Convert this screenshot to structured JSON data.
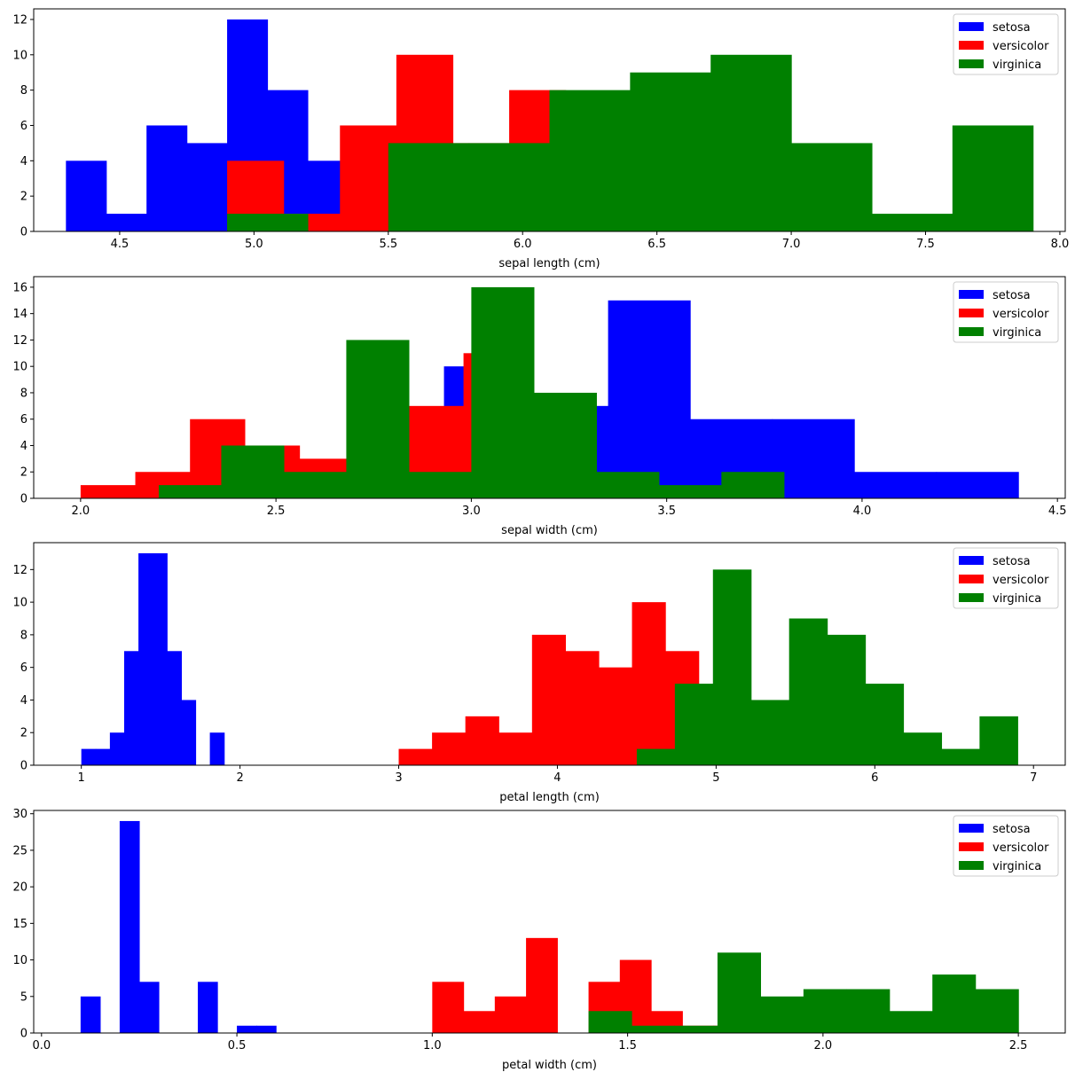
{
  "colors": {
    "setosa": "#0000ff",
    "versicolor": "#ff0000",
    "virginica": "#008000"
  },
  "chart_data": [
    {
      "type": "histogram",
      "xlabel": "sepal length (cm)",
      "xlim": [
        4.18,
        8.02
      ],
      "ylim": [
        0,
        12.6
      ],
      "xticks": [
        "4.5",
        "5.0",
        "5.5",
        "6.0",
        "6.5",
        "7.0",
        "7.5",
        "8.0"
      ],
      "yticks": [
        "0",
        "2",
        "4",
        "6",
        "8",
        "10",
        "12"
      ],
      "legend": [
        "setosa",
        "versicolor",
        "virginica"
      ],
      "series": [
        {
          "name": "setosa",
          "color": "#0000ff",
          "edges": [
            4.3,
            4.45,
            4.6,
            4.75,
            4.9,
            5.05,
            5.2,
            5.35,
            5.5,
            5.65,
            5.8
          ],
          "counts": [
            4,
            1,
            6,
            5,
            12,
            8,
            4,
            1,
            0,
            0
          ]
        },
        {
          "name": "versicolor",
          "color": "#ff0000",
          "edges": [
            4.9,
            5.11,
            5.32,
            5.53,
            5.74,
            5.95,
            6.16,
            6.37,
            6.58,
            6.79,
            7.0
          ],
          "counts": [
            4,
            1,
            6,
            10,
            5,
            8,
            5,
            5,
            4,
            2
          ]
        },
        {
          "name": "virginica",
          "color": "#008000",
          "edges": [
            4.9,
            5.2,
            5.5,
            5.8,
            6.1,
            6.4,
            6.7,
            7.0,
            7.3,
            7.6,
            7.9
          ],
          "counts": [
            1,
            0,
            5,
            5,
            8,
            9,
            10,
            5,
            1,
            6
          ]
        }
      ]
    },
    {
      "type": "histogram",
      "xlabel": "sepal width (cm)",
      "xlim": [
        1.88,
        4.52
      ],
      "ylim": [
        0,
        16.8
      ],
      "xticks": [
        "2.0",
        "2.5",
        "3.0",
        "3.5",
        "4.0",
        "4.5"
      ],
      "yticks": [
        "0",
        "2",
        "4",
        "6",
        "8",
        "10",
        "12",
        "14",
        "16"
      ],
      "legend": [
        "setosa",
        "versicolor",
        "virginica"
      ],
      "series": [
        {
          "name": "setosa",
          "color": "#0000ff",
          "edges": [
            2.3,
            2.51,
            2.72,
            2.93,
            3.14,
            3.35,
            3.56,
            3.77,
            3.98,
            4.19,
            4.4
          ],
          "counts": [
            1,
            0,
            1,
            10,
            7,
            15,
            6,
            6,
            2,
            2
          ]
        },
        {
          "name": "versicolor",
          "color": "#ff0000",
          "edges": [
            2.0,
            2.14,
            2.28,
            2.42,
            2.56,
            2.7,
            2.84,
            2.98,
            3.12,
            3.26,
            3.4
          ],
          "counts": [
            1,
            2,
            6,
            4,
            3,
            8,
            7,
            11,
            7,
            1
          ]
        },
        {
          "name": "virginica",
          "color": "#008000",
          "edges": [
            2.2,
            2.36,
            2.52,
            2.68,
            2.84,
            3.0,
            3.16,
            3.32,
            3.48,
            3.64,
            3.8
          ],
          "counts": [
            1,
            4,
            2,
            12,
            2,
            16,
            8,
            2,
            1,
            2
          ]
        }
      ]
    },
    {
      "type": "histogram",
      "xlabel": "petal length (cm)",
      "xlim": [
        0.7,
        7.2
      ],
      "ylim": [
        0,
        13.65
      ],
      "xticks": [
        "1",
        "2",
        "3",
        "4",
        "5",
        "6",
        "7"
      ],
      "yticks": [
        "0",
        "2",
        "4",
        "6",
        "8",
        "10",
        "12"
      ],
      "legend": [
        "setosa",
        "versicolor",
        "virginica"
      ],
      "series": [
        {
          "name": "setosa",
          "color": "#0000ff",
          "edges": [
            1.0,
            1.09,
            1.18,
            1.27,
            1.36,
            1.45,
            1.54,
            1.63,
            1.72,
            1.81,
            1.9
          ],
          "counts": [
            1,
            1,
            2,
            7,
            13,
            13,
            7,
            4,
            0,
            2
          ]
        },
        {
          "name": "versicolor",
          "color": "#ff0000",
          "edges": [
            3.0,
            3.21,
            3.42,
            3.63,
            3.84,
            4.05,
            4.26,
            4.47,
            4.68,
            4.89,
            5.1
          ],
          "counts": [
            1,
            2,
            3,
            2,
            8,
            7,
            6,
            10,
            7,
            4
          ]
        },
        {
          "name": "virginica",
          "color": "#008000",
          "edges": [
            4.5,
            4.74,
            4.98,
            5.22,
            5.46,
            5.7,
            5.94,
            6.18,
            6.42,
            6.66,
            6.9
          ],
          "counts": [
            1,
            5,
            12,
            4,
            9,
            8,
            5,
            2,
            1,
            3
          ]
        }
      ]
    },
    {
      "type": "histogram",
      "xlabel": "petal width (cm)",
      "xlim": [
        -0.02,
        2.62
      ],
      "ylim": [
        0,
        30.45
      ],
      "xticks": [
        "0.0",
        "0.5",
        "1.0",
        "1.5",
        "2.0",
        "2.5"
      ],
      "yticks": [
        "0",
        "5",
        "10",
        "15",
        "20",
        "25",
        "30"
      ],
      "legend": [
        "setosa",
        "versicolor",
        "virginica"
      ],
      "series": [
        {
          "name": "setosa",
          "color": "#0000ff",
          "edges": [
            0.1,
            0.15,
            0.2,
            0.25,
            0.3,
            0.35,
            0.4,
            0.45,
            0.5,
            0.55,
            0.6
          ],
          "counts": [
            5,
            0,
            29,
            7,
            0,
            0,
            7,
            0,
            1,
            1
          ]
        },
        {
          "name": "versicolor",
          "color": "#ff0000",
          "edges": [
            1.0,
            1.08,
            1.16,
            1.24,
            1.32,
            1.4,
            1.48,
            1.56,
            1.64,
            1.72,
            1.8
          ],
          "counts": [
            7,
            3,
            5,
            13,
            0,
            7,
            10,
            3,
            1,
            1
          ]
        },
        {
          "name": "virginica",
          "color": "#008000",
          "edges": [
            1.4,
            1.51,
            1.62,
            1.73,
            1.84,
            1.95,
            2.06,
            2.17,
            2.28,
            2.39,
            2.5
          ],
          "counts": [
            3,
            1,
            1,
            11,
            5,
            6,
            6,
            3,
            8,
            6
          ]
        }
      ]
    }
  ]
}
